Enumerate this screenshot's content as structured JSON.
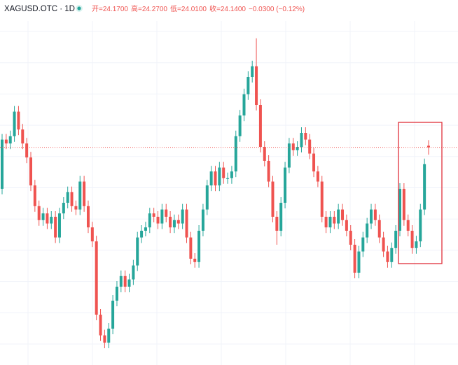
{
  "chart_data": {
    "type": "candlestick",
    "title": "XAGUSD.OTC · 1D",
    "ohlc_text": [
      "开=24.1700",
      "高=24.2700",
      "低=24.0100",
      "收=24.1400",
      "−0.0300 (−0.12%)"
    ],
    "up_color": "#26a69a",
    "down_color": "#ef5350",
    "ylim": [
      20.25,
      26.4
    ],
    "grid": true,
    "open": [
      23.4,
      24.28,
      24.21,
      24.34,
      24.78,
      24.46,
      24.21,
      23.96,
      23.46,
      23.09,
      22.84,
      22.96,
      22.78,
      22.9,
      22.53,
      22.96,
      23.15,
      23.34,
      23.09,
      23.03,
      23.53,
      23.09,
      22.71,
      22.46,
      21.15,
      20.78,
      20.65,
      20.9,
      21.4,
      21.65,
      21.84,
      21.65,
      21.78,
      22.03,
      22.53,
      22.65,
      22.71,
      22.96,
      22.9,
      22.78,
      23.03,
      22.9,
      22.71,
      22.84,
      22.78,
      23.03,
      22.53,
      22.15,
      22.09,
      22.65,
      23.03,
      23.46,
      23.71,
      23.46,
      23.78,
      23.59,
      23.59,
      23.71,
      24.34,
      24.71,
      25.09,
      25.4,
      25.59,
      24.9,
      24.15,
      23.9,
      23.53,
      22.9,
      22.65,
      23.15,
      23.78,
      24.21,
      24.09,
      24.15,
      24.4,
      24.28,
      24.03,
      23.71,
      23.53,
      22.9,
      22.71,
      22.9,
      22.78,
      23.03,
      22.84,
      22.65,
      22.4,
      21.9,
      22.28,
      22.53,
      22.78,
      23.03,
      22.84,
      22.53,
      22.28,
      22.09,
      22.34,
      22.65,
      23.4,
      22.84,
      22.65,
      22.34,
      22.46,
      23.03,
      24.17
    ],
    "high": [
      24.38,
      24.38,
      24.44,
      24.88,
      24.88,
      24.56,
      24.31,
      24.06,
      23.56,
      23.19,
      23.06,
      23.06,
      23.0,
      23.0,
      23.06,
      23.25,
      23.44,
      23.44,
      23.19,
      23.63,
      23.63,
      23.19,
      22.81,
      22.56,
      21.25,
      20.88,
      21.0,
      21.5,
      21.75,
      21.94,
      21.94,
      21.88,
      22.13,
      22.63,
      22.75,
      22.81,
      23.06,
      23.06,
      23.0,
      23.13,
      23.13,
      23.0,
      22.94,
      22.94,
      23.13,
      23.13,
      22.63,
      22.25,
      22.75,
      23.13,
      23.56,
      23.81,
      23.81,
      23.88,
      23.88,
      23.69,
      23.81,
      24.44,
      24.81,
      25.19,
      25.5,
      25.69,
      26.09,
      25.0,
      24.25,
      24.0,
      23.63,
      23.0,
      23.25,
      23.88,
      24.31,
      24.31,
      24.25,
      24.5,
      24.5,
      24.38,
      24.13,
      23.81,
      23.63,
      23.0,
      23.0,
      23.0,
      23.13,
      23.13,
      22.94,
      22.75,
      22.5,
      22.38,
      22.63,
      22.88,
      23.13,
      23.13,
      22.94,
      22.63,
      22.38,
      22.44,
      22.75,
      23.5,
      23.5,
      22.94,
      22.75,
      22.56,
      23.13,
      23.94,
      24.27
    ],
    "low": [
      23.3,
      24.11,
      24.11,
      24.24,
      24.36,
      24.11,
      23.86,
      23.36,
      22.99,
      22.74,
      22.74,
      22.68,
      22.68,
      22.43,
      22.43,
      22.86,
      23.05,
      22.99,
      22.93,
      22.93,
      22.99,
      22.61,
      22.36,
      21.05,
      20.68,
      20.55,
      20.55,
      20.8,
      21.3,
      21.55,
      21.55,
      21.55,
      21.68,
      21.93,
      22.43,
      22.55,
      22.61,
      22.8,
      22.68,
      22.68,
      22.8,
      22.61,
      22.61,
      22.68,
      22.68,
      22.43,
      22.05,
      21.99,
      21.99,
      22.55,
      22.93,
      23.36,
      23.36,
      23.36,
      23.49,
      23.49,
      23.49,
      23.61,
      24.24,
      24.61,
      24.99,
      25.3,
      24.8,
      24.05,
      23.8,
      23.43,
      22.8,
      22.4,
      22.55,
      23.05,
      23.68,
      23.99,
      23.99,
      24.05,
      24.18,
      23.93,
      23.61,
      23.43,
      22.8,
      22.61,
      22.61,
      22.68,
      22.68,
      22.74,
      22.55,
      22.3,
      21.8,
      21.8,
      22.18,
      22.43,
      22.68,
      22.74,
      22.43,
      22.18,
      21.99,
      21.99,
      22.24,
      22.55,
      22.74,
      22.55,
      22.24,
      22.24,
      22.36,
      22.93,
      24.01
    ],
    "close": [
      24.28,
      24.21,
      24.34,
      24.78,
      24.46,
      24.21,
      23.96,
      23.46,
      23.09,
      22.84,
      22.96,
      22.78,
      22.9,
      22.53,
      22.96,
      23.15,
      23.34,
      23.09,
      23.03,
      23.53,
      23.09,
      22.71,
      22.46,
      21.15,
      20.78,
      20.65,
      20.9,
      21.4,
      21.65,
      21.84,
      21.65,
      21.78,
      22.03,
      22.53,
      22.65,
      22.71,
      22.96,
      22.9,
      22.78,
      23.03,
      22.9,
      22.71,
      22.84,
      22.78,
      23.03,
      22.53,
      22.15,
      22.09,
      22.65,
      23.03,
      23.46,
      23.71,
      23.46,
      23.78,
      23.59,
      23.59,
      23.71,
      24.34,
      24.71,
      25.09,
      25.4,
      25.59,
      24.9,
      24.15,
      23.9,
      23.53,
      22.9,
      22.65,
      23.15,
      23.78,
      24.21,
      24.09,
      24.15,
      24.4,
      24.28,
      24.03,
      23.71,
      23.53,
      22.9,
      22.71,
      22.9,
      22.78,
      23.03,
      22.84,
      22.65,
      22.4,
      21.9,
      22.28,
      22.53,
      22.78,
      23.03,
      22.84,
      22.53,
      22.28,
      22.09,
      22.34,
      22.65,
      23.4,
      22.84,
      22.65,
      22.34,
      22.46,
      23.03,
      23.84,
      24.14
    ]
  }
}
